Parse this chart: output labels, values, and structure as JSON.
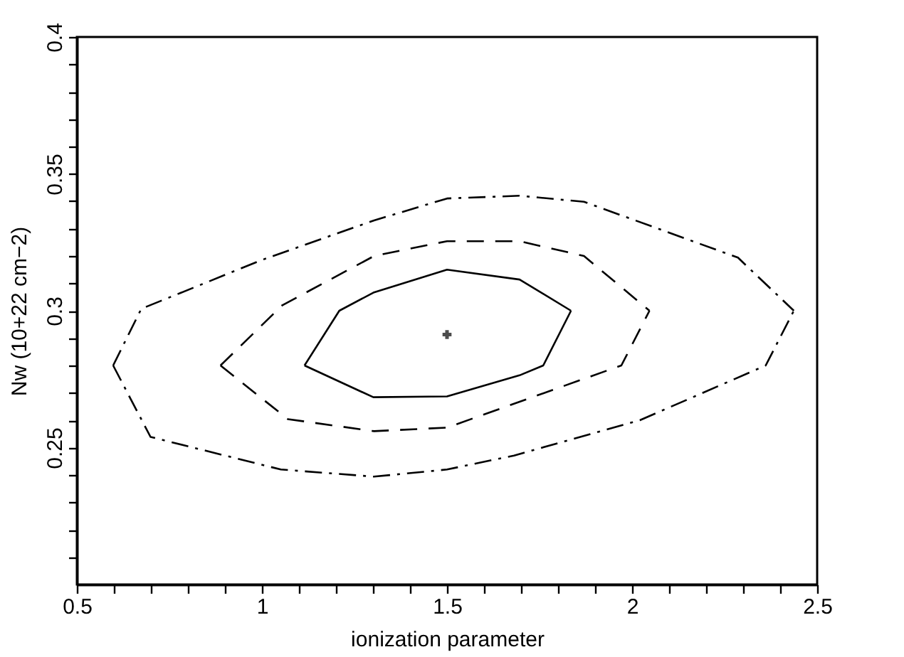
{
  "chart_data": {
    "type": "line",
    "xlabel": "ionization parameter",
    "ylabel": "Nw (10+22 cm−2)",
    "xlim": [
      0.5,
      2.5
    ],
    "ylim": [
      0.2,
      0.4
    ],
    "xticks": [
      0.5,
      {
        "value": 0.6,
        "label": null
      },
      {
        "value": 0.7,
        "label": null
      },
      {
        "value": 0.8,
        "label": null
      },
      {
        "value": 0.9,
        "label": null
      },
      1,
      {
        "value": 1.1,
        "label": null
      },
      {
        "value": 1.2,
        "label": null
      },
      {
        "value": 1.3,
        "label": null
      },
      {
        "value": 1.4,
        "label": null
      },
      1.5,
      {
        "value": 1.6,
        "label": null
      },
      {
        "value": 1.7,
        "label": null
      },
      {
        "value": 1.8,
        "label": null
      },
      {
        "value": 1.9,
        "label": null
      },
      2,
      {
        "value": 2.1,
        "label": null
      },
      {
        "value": 2.2,
        "label": null
      },
      {
        "value": 2.3,
        "label": null
      },
      {
        "value": 2.4,
        "label": null
      },
      2.5
    ],
    "yticks": [
      {
        "value": 0.21,
        "label": null
      },
      {
        "value": 0.22,
        "label": null
      },
      {
        "value": 0.23,
        "label": null
      },
      {
        "value": 0.24,
        "label": null
      },
      0.25,
      {
        "value": 0.26,
        "label": null
      },
      {
        "value": 0.27,
        "label": null
      },
      {
        "value": 0.28,
        "label": null
      },
      {
        "value": 0.29,
        "label": null
      },
      0.3,
      {
        "value": 0.31,
        "label": null
      },
      {
        "value": 0.32,
        "label": null
      },
      {
        "value": 0.33,
        "label": null
      },
      {
        "value": 0.34,
        "label": null
      },
      0.35,
      {
        "value": 0.36,
        "label": null
      },
      {
        "value": 0.37,
        "label": null
      },
      {
        "value": 0.38,
        "label": null
      },
      {
        "value": 0.39,
        "label": null
      },
      0.4
    ],
    "grid": false,
    "series": [
      {
        "type": "line",
        "color": "#000000",
        "line_style": "solid",
        "x": [
          1.115,
          1.209,
          1.301,
          1.5,
          1.696,
          1.835
        ],
        "values": [
          0.28,
          0.3,
          0.3066,
          0.315,
          0.3114,
          0.3
        ]
      },
      {
        "type": "line",
        "color": "#000000",
        "line_style": "solid",
        "x": [
          1.115,
          1.301,
          1.5,
          1.696,
          1.76,
          1.835
        ],
        "values": [
          0.28,
          0.2684,
          0.2687,
          0.2764,
          0.28,
          0.3
        ]
      },
      {
        "type": "line",
        "color": "#000000",
        "line_style": "dashed",
        "x": [
          0.888,
          1.055,
          1.303,
          1.5,
          1.696,
          1.87,
          2.047
        ],
        "values": [
          0.28,
          0.302,
          0.32,
          0.3254,
          0.3254,
          0.32,
          0.3
        ]
      },
      {
        "type": "line",
        "color": "#000000",
        "line_style": "dashed",
        "x": [
          0.888,
          1.07,
          1.303,
          1.5,
          1.971,
          2.047
        ],
        "values": [
          0.28,
          0.2604,
          0.256,
          0.2573,
          0.28,
          0.3
        ]
      },
      {
        "type": "line",
        "color": "#000000",
        "line_style": "dashdot",
        "x": [
          0.598,
          0.674,
          0.999,
          1.303,
          1.5,
          1.696,
          1.87,
          2.286,
          2.437
        ],
        "values": [
          0.28,
          0.3007,
          0.3185,
          0.333,
          0.341,
          0.342,
          0.3398,
          0.3194,
          0.3
        ]
      },
      {
        "type": "line",
        "color": "#000000",
        "line_style": "dashdot",
        "x": [
          0.598,
          0.699,
          1.051,
          1.303,
          1.5,
          1.681,
          2.021,
          2.361,
          2.437
        ],
        "values": [
          0.28,
          0.2539,
          0.242,
          0.2394,
          0.242,
          0.2471,
          0.26,
          0.28,
          0.3
        ]
      },
      {
        "type": "scatter",
        "color": "#000000",
        "marker": "cross",
        "x": [
          1.5
        ],
        "values": [
          0.2913
        ]
      }
    ]
  }
}
